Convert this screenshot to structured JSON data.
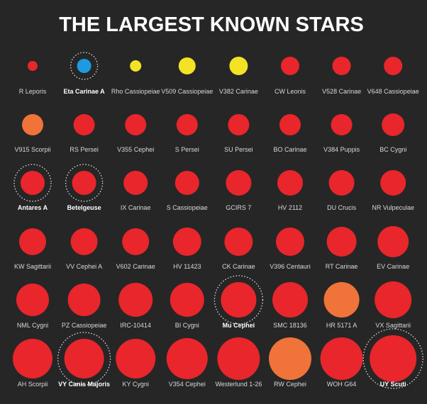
{
  "title": "THE LARGEST KNOWN STARS",
  "stars": [
    {
      "name": "R Leporis",
      "color": "#e8262b"
    },
    {
      "name": "Eta Carinae A",
      "color": "#1e9be0",
      "highlight": true
    },
    {
      "name": "Rho Cassiopeiae",
      "color": "#f3e324"
    },
    {
      "name": "V509 Cassiopeiae",
      "color": "#f3e324"
    },
    {
      "name": "V382 Carinae",
      "color": "#f3e324"
    },
    {
      "name": "CW Leonis",
      "color": "#e8262b"
    },
    {
      "name": "V528 Carinae",
      "color": "#e8262b"
    },
    {
      "name": "V648 Cassiopeiae",
      "color": "#e8262b"
    },
    {
      "name": "V915 Scorpii",
      "color": "#f0733a"
    },
    {
      "name": "RS Persei",
      "color": "#e8262b"
    },
    {
      "name": "V355 Cephei",
      "color": "#e8262b"
    },
    {
      "name": "S Persei",
      "color": "#e8262b"
    },
    {
      "name": "SU Persei",
      "color": "#e8262b"
    },
    {
      "name": "BO Carinae",
      "color": "#e8262b"
    },
    {
      "name": "V384 Puppis",
      "color": "#e8262b"
    },
    {
      "name": "BC Cygni",
      "color": "#e8262b"
    },
    {
      "name": "Antares A",
      "color": "#e8262b",
      "highlight": true
    },
    {
      "name": "Betelgeuse",
      "color": "#e8262b",
      "highlight": true
    },
    {
      "name": "IX Carinae",
      "color": "#e8262b"
    },
    {
      "name": "S Cassiopeiae",
      "color": "#e8262b"
    },
    {
      "name": "GCIRS 7",
      "color": "#e8262b"
    },
    {
      "name": "HV 2112",
      "color": "#e8262b"
    },
    {
      "name": "DU Crucis",
      "color": "#e8262b"
    },
    {
      "name": "NR Vulpeculae",
      "color": "#e8262b"
    },
    {
      "name": "KW Sagittarii",
      "color": "#e8262b"
    },
    {
      "name": "VV Cephei A",
      "color": "#e8262b"
    },
    {
      "name": "V602 Carinae",
      "color": "#e8262b"
    },
    {
      "name": "HV 11423",
      "color": "#e8262b"
    },
    {
      "name": "CK Carinae",
      "color": "#e8262b"
    },
    {
      "name": "V396 Centauri",
      "color": "#e8262b"
    },
    {
      "name": "RT Carinae",
      "color": "#e8262b"
    },
    {
      "name": "EV Carinae",
      "color": "#e8262b"
    },
    {
      "name": "NML Cygni",
      "color": "#e8262b"
    },
    {
      "name": "PZ Cassiopeiae",
      "color": "#e8262b"
    },
    {
      "name": "IRC-10414",
      "color": "#e8262b"
    },
    {
      "name": "BI Cygni",
      "color": "#e8262b"
    },
    {
      "name": "Mu Cephei",
      "color": "#e8262b",
      "highlight": true
    },
    {
      "name": "SMC 18136",
      "color": "#e8262b"
    },
    {
      "name": "HR 5171 A",
      "color": "#f0733a"
    },
    {
      "name": "VX Sagittarii",
      "color": "#e8262b"
    },
    {
      "name": "AH Scorpii",
      "color": "#e8262b"
    },
    {
      "name": "VY Canis Majoris",
      "color": "#e8262b",
      "highlight": true
    },
    {
      "name": "KY Cygni",
      "color": "#e8262b"
    },
    {
      "name": "V354 Cephei",
      "color": "#e8262b"
    },
    {
      "name": "Westerlund 1-26",
      "color": "#e8262b"
    },
    {
      "name": "RW Cephei",
      "color": "#f0733a"
    },
    {
      "name": "WOH G64",
      "color": "#e8262b"
    },
    {
      "name": "UY Scuti",
      "color": "#e8262b",
      "highlight": true
    }
  ]
}
